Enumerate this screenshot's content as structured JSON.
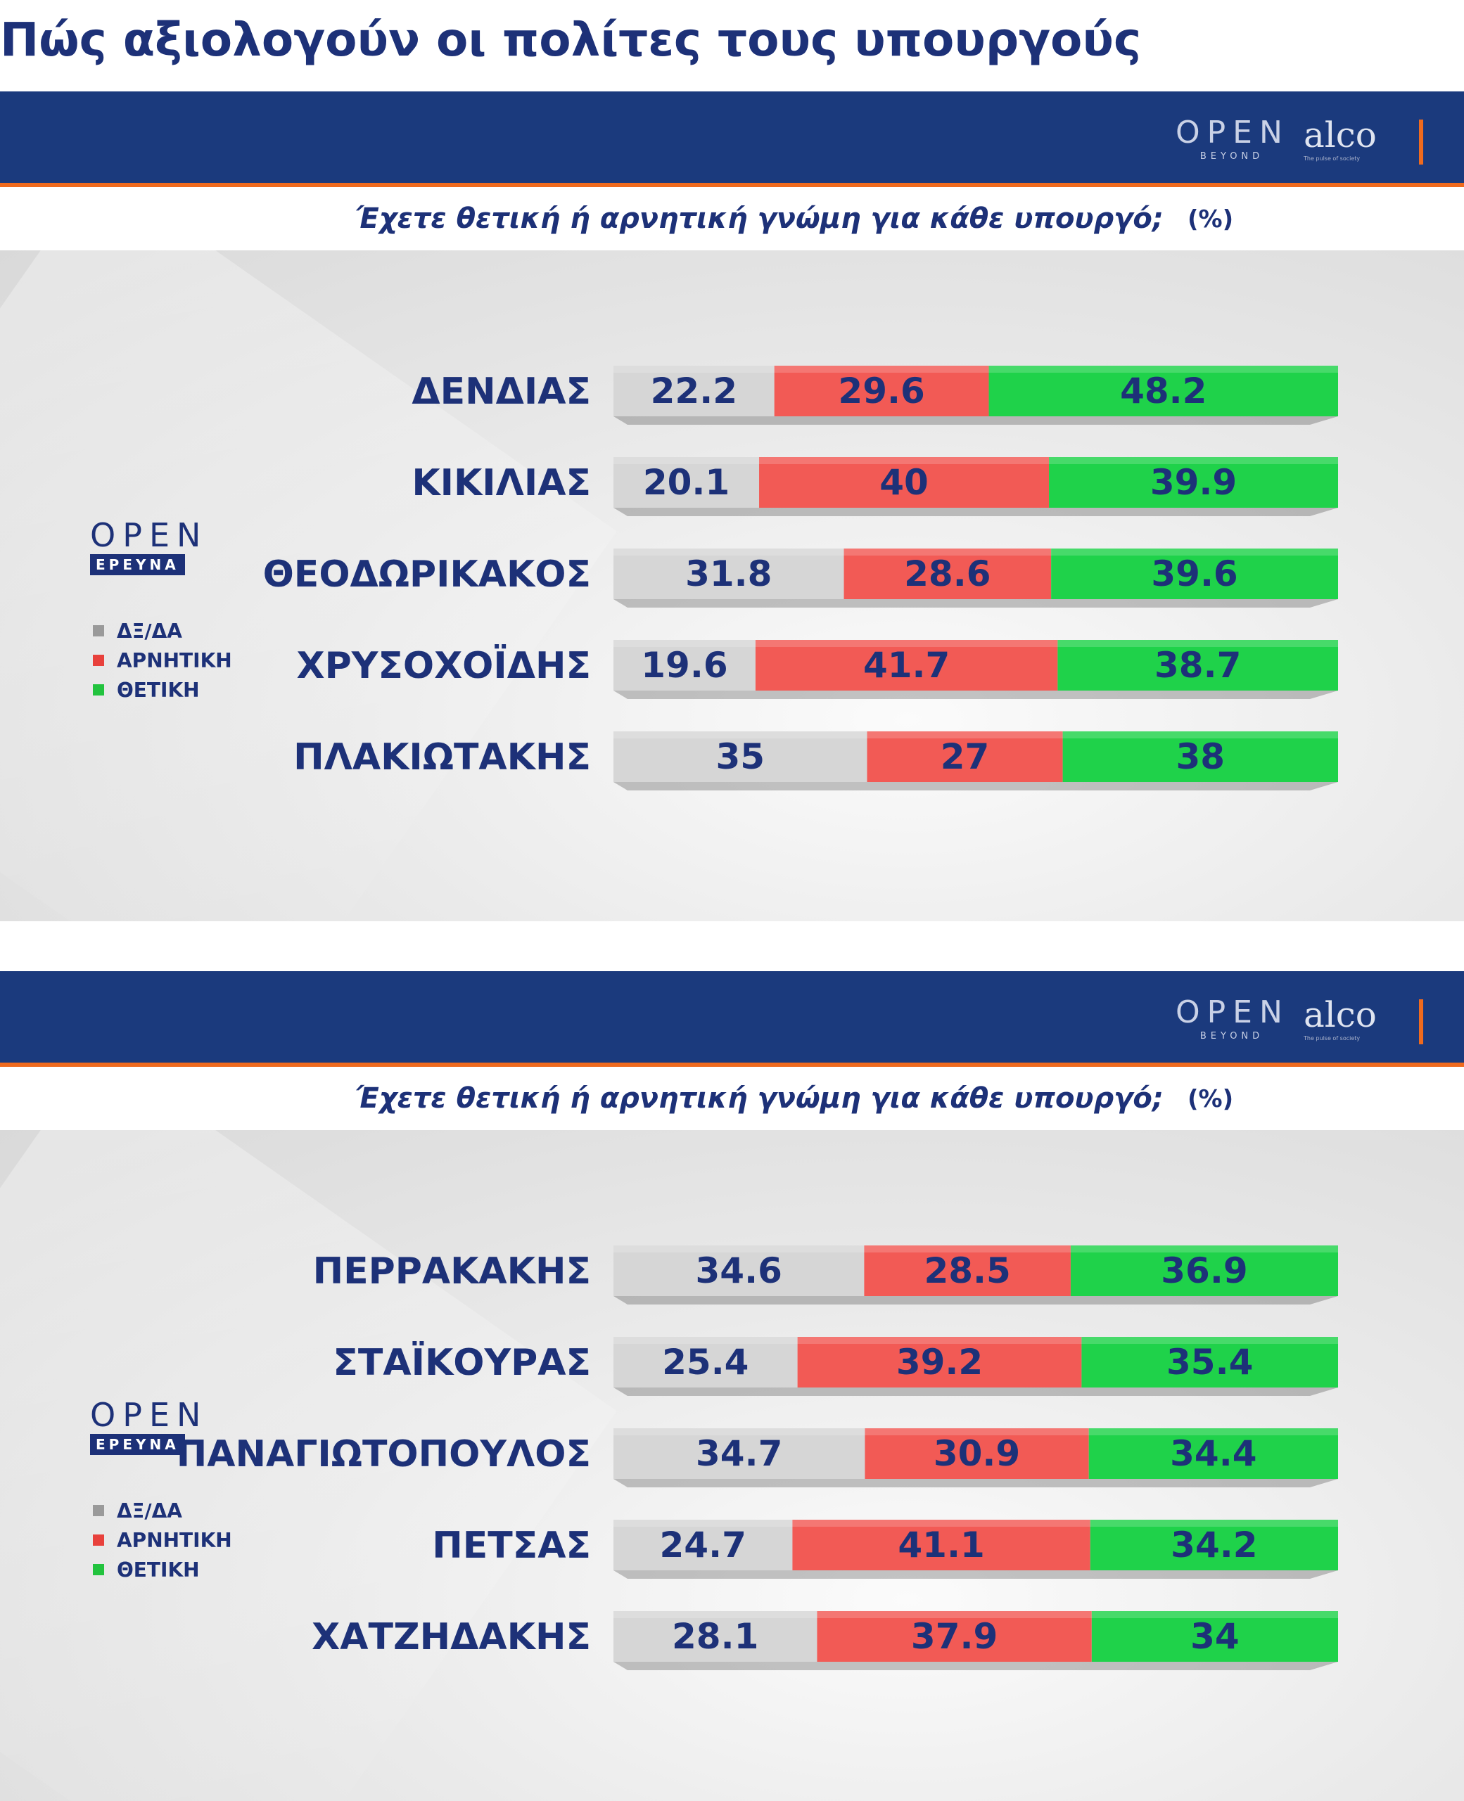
{
  "page": {
    "title": "Πώς αξιολογούν οι πολίτες τους υπουργούς"
  },
  "panels": [
    {
      "brand": {
        "open_word": "OPEN",
        "open_sub": "BEYOND",
        "alco_word": "alco",
        "alco_sub": "The pulse of society"
      },
      "question": "Έχετε θετική ή αρνητική γνώμη για κάθε υπουργό;",
      "unit": "(%)",
      "logo": {
        "open": "OPEN",
        "erevna": "ΕΡΕΥΝΑ"
      }
    },
    {
      "brand": {
        "open_word": "OPEN",
        "open_sub": "BEYOND",
        "alco_word": "alco",
        "alco_sub": "The pulse of society"
      },
      "question": "Έχετε θετική ή αρνητική γνώμη για κάθε υπουργό;",
      "unit": "(%)",
      "logo": {
        "open": "OPEN",
        "erevna": "ΕΡΕΥΝΑ"
      }
    }
  ],
  "legend": [
    {
      "label": "ΔΞ/ΔΑ",
      "color": "#9a9a9a"
    },
    {
      "label": "ΑΡΝΗΤΙΚΗ",
      "color": "#e8413c"
    },
    {
      "label": "ΘΕΤΙΚΗ",
      "color": "#22c33e"
    }
  ],
  "colors": {
    "dk": "#d6d6d6",
    "negative": "#f25a55",
    "positive": "#1fd24a",
    "text": "#1d3178",
    "header": "#1b3a7d",
    "accent": "#ef6a1e"
  },
  "chart_data": [
    {
      "type": "bar",
      "stacked": true,
      "orientation": "horizontal",
      "title": "Έχετε θετική ή αρνητική γνώμη για κάθε υπουργό;",
      "categories": [
        "ΔΕΝΔΙΑΣ",
        "ΚΙΚΙΛΙΑΣ",
        "ΘΕΟΔΩΡΙΚΑΚΟΣ",
        "ΧΡΥΣΟΧΟΪΔΗΣ",
        "ΠΛΑΚΙΩΤΑΚΗΣ"
      ],
      "series": [
        {
          "name": "ΔΞ/ΔΑ",
          "values": [
            22.2,
            20.1,
            31.8,
            19.6,
            35
          ]
        },
        {
          "name": "ΑΡΝΗΤΙΚΗ",
          "values": [
            29.6,
            40,
            28.6,
            41.7,
            27
          ]
        },
        {
          "name": "ΘΕΤΙΚΗ",
          "values": [
            48.2,
            39.9,
            39.6,
            38.7,
            38
          ]
        }
      ],
      "xlim": [
        0,
        100
      ],
      "legend_position": "left"
    },
    {
      "type": "bar",
      "stacked": true,
      "orientation": "horizontal",
      "title": "Έχετε θετική ή αρνητική γνώμη για κάθε υπουργό;",
      "categories": [
        "ΠΕΡΡΑΚΑΚΗΣ",
        "ΣΤΑΪΚΟΥΡΑΣ",
        "ΠΑΝΑΓΙΩΤΟΠΟΥΛΟΣ",
        "ΠΕΤΣΑΣ",
        "ΧΑΤΖΗΔΑΚΗΣ"
      ],
      "series": [
        {
          "name": "ΔΞ/ΔΑ",
          "values": [
            34.6,
            25.4,
            34.7,
            24.7,
            28.1
          ]
        },
        {
          "name": "ΑΡΝΗΤΙΚΗ",
          "values": [
            28.5,
            39.2,
            30.9,
            41.1,
            37.9
          ]
        },
        {
          "name": "ΘΕΤΙΚΗ",
          "values": [
            36.9,
            35.4,
            34.4,
            34.2,
            34
          ]
        }
      ],
      "xlim": [
        0,
        100
      ],
      "legend_position": "left"
    }
  ]
}
